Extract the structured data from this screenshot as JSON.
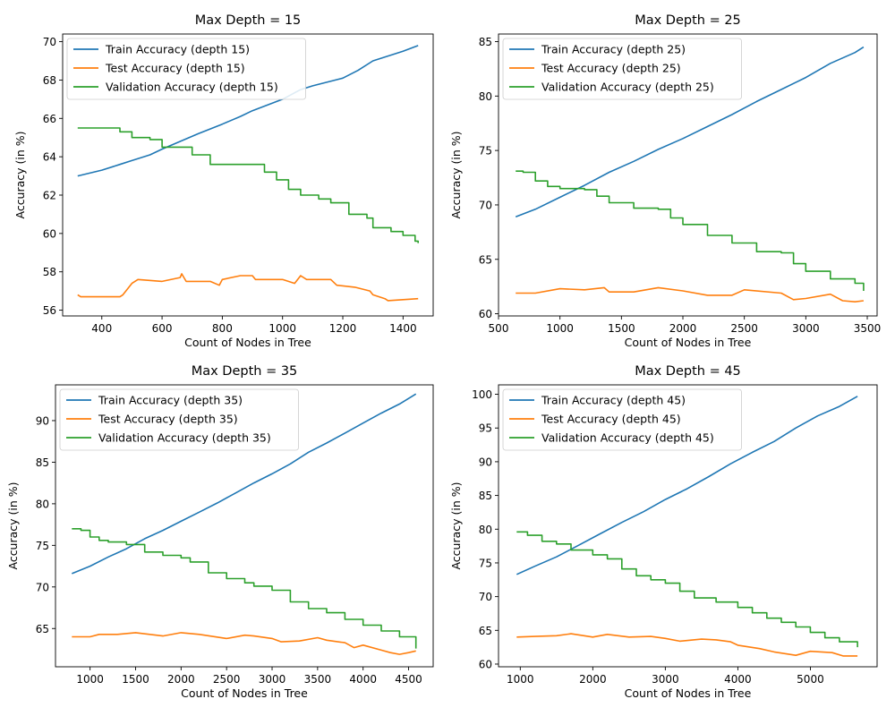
{
  "colors": {
    "train": "#1f77b4",
    "test": "#ff7f0e",
    "validation": "#2ca02c"
  },
  "chart_data": [
    {
      "type": "line",
      "title": "Max Depth = 15",
      "xlabel": "Count of Nodes in Tree",
      "ylabel": "Accuracy (in %)",
      "xlim": [
        270,
        1500
      ],
      "ylim": [
        55.7,
        70.4
      ],
      "xticks": [
        400,
        600,
        800,
        1000,
        1200,
        1400
      ],
      "yticks": [
        56,
        58,
        60,
        62,
        64,
        66,
        68,
        70
      ],
      "legend_position": "top-left",
      "grid": false,
      "series": [
        {
          "name": "Train Accuracy (depth 15)",
          "color_key": "train",
          "x": [
            320,
            400,
            460,
            500,
            560,
            600,
            660,
            720,
            800,
            860,
            900,
            1000,
            1060,
            1100,
            1200,
            1250,
            1300,
            1400,
            1450
          ],
          "y": [
            63.0,
            63.3,
            63.6,
            63.8,
            64.1,
            64.4,
            64.8,
            65.2,
            65.7,
            66.1,
            66.4,
            67.0,
            67.5,
            67.7,
            68.1,
            68.5,
            69.0,
            69.5,
            69.8
          ]
        },
        {
          "name": "Test Accuracy (depth 15)",
          "color_key": "test",
          "x": [
            320,
            330,
            460,
            470,
            500,
            520,
            600,
            660,
            665,
            680,
            760,
            790,
            800,
            860,
            900,
            910,
            1000,
            1040,
            1060,
            1080,
            1160,
            1180,
            1240,
            1290,
            1300,
            1340,
            1350,
            1450
          ],
          "y": [
            56.8,
            56.7,
            56.7,
            56.8,
            57.4,
            57.6,
            57.5,
            57.7,
            57.9,
            57.5,
            57.5,
            57.3,
            57.6,
            57.8,
            57.8,
            57.6,
            57.6,
            57.4,
            57.8,
            57.6,
            57.6,
            57.3,
            57.2,
            57.0,
            56.8,
            56.6,
            56.5,
            56.6
          ]
        },
        {
          "name": "Validation Accuracy (depth 15)",
          "color_key": "validation",
          "x": [
            320,
            400,
            460,
            500,
            560,
            600,
            640,
            700,
            760,
            900,
            940,
            980,
            1020,
            1060,
            1120,
            1160,
            1220,
            1280,
            1300,
            1360,
            1400,
            1440,
            1450
          ],
          "y": [
            65.5,
            65.5,
            65.3,
            65.0,
            64.9,
            64.5,
            64.5,
            64.1,
            63.6,
            63.6,
            63.2,
            62.8,
            62.3,
            62.0,
            61.8,
            61.6,
            61.0,
            60.8,
            60.3,
            60.1,
            59.9,
            59.6,
            59.5
          ]
        }
      ]
    },
    {
      "type": "line",
      "title": "Max Depth = 25",
      "xlabel": "Count of Nodes in Tree",
      "ylabel": "Accuracy (in %)",
      "xlim": [
        500,
        3580
      ],
      "ylim": [
        59.8,
        85.7
      ],
      "xticks": [
        500,
        1000,
        1500,
        2000,
        2500,
        3000,
        3500
      ],
      "yticks": [
        60,
        65,
        70,
        75,
        80,
        85
      ],
      "legend_position": "top-left",
      "grid": false,
      "series": [
        {
          "name": "Train Accuracy (depth 25)",
          "color_key": "train",
          "x": [
            640,
            800,
            1000,
            1200,
            1400,
            1600,
            1800,
            2000,
            2200,
            2400,
            2600,
            2800,
            3000,
            3200,
            3400,
            3470
          ],
          "y": [
            68.9,
            69.6,
            70.7,
            71.8,
            73.0,
            74.0,
            75.1,
            76.1,
            77.2,
            78.3,
            79.5,
            80.6,
            81.7,
            83.0,
            84.0,
            84.5
          ]
        },
        {
          "name": "Test Accuracy (depth 25)",
          "color_key": "test",
          "x": [
            640,
            800,
            1000,
            1200,
            1360,
            1400,
            1600,
            1800,
            2000,
            2200,
            2400,
            2500,
            2800,
            2900,
            3000,
            3200,
            3300,
            3400,
            3470
          ],
          "y": [
            61.9,
            61.9,
            62.3,
            62.2,
            62.4,
            62.0,
            62.0,
            62.4,
            62.1,
            61.7,
            61.7,
            62.2,
            61.9,
            61.3,
            61.4,
            61.8,
            61.2,
            61.1,
            61.2
          ]
        },
        {
          "name": "Validation Accuracy (depth 25)",
          "color_key": "validation",
          "x": [
            640,
            700,
            800,
            900,
            1000,
            1200,
            1300,
            1400,
            1600,
            1800,
            1900,
            2000,
            2200,
            2400,
            2600,
            2800,
            2900,
            3000,
            3200,
            3400,
            3470
          ],
          "y": [
            73.1,
            73.0,
            72.2,
            71.7,
            71.5,
            71.4,
            70.8,
            70.2,
            69.7,
            69.6,
            68.8,
            68.2,
            67.2,
            66.5,
            65.7,
            65.6,
            64.6,
            63.9,
            63.2,
            62.8,
            62.1
          ]
        }
      ]
    },
    {
      "type": "line",
      "title": "Max Depth = 35",
      "xlabel": "Count of Nodes in Tree",
      "ylabel": "Accuracy (in %)",
      "xlim": [
        620,
        4770
      ],
      "ylim": [
        60.4,
        94.3
      ],
      "xticks": [
        1000,
        1500,
        2000,
        2500,
        3000,
        3500,
        4000,
        4500
      ],
      "yticks": [
        65,
        70,
        75,
        80,
        85,
        90
      ],
      "legend_position": "top-left",
      "grid": false,
      "series": [
        {
          "name": "Train Accuracy (depth 35)",
          "color_key": "train",
          "x": [
            800,
            1000,
            1200,
            1400,
            1600,
            1800,
            2000,
            2200,
            2400,
            2600,
            2800,
            3000,
            3200,
            3400,
            3600,
            3800,
            4000,
            4200,
            4400,
            4580
          ],
          "y": [
            71.6,
            72.5,
            73.6,
            74.6,
            75.8,
            76.8,
            77.9,
            79.0,
            80.1,
            81.3,
            82.5,
            83.6,
            84.8,
            86.2,
            87.3,
            88.5,
            89.7,
            90.9,
            92.0,
            93.2
          ]
        },
        {
          "name": "Test Accuracy (depth 35)",
          "color_key": "test",
          "x": [
            800,
            1000,
            1100,
            1300,
            1500,
            1800,
            2000,
            2200,
            2500,
            2700,
            2800,
            3000,
            3100,
            3300,
            3500,
            3600,
            3800,
            3900,
            4000,
            4200,
            4300,
            4400,
            4500,
            4580
          ],
          "y": [
            64.0,
            64.0,
            64.3,
            64.3,
            64.5,
            64.1,
            64.5,
            64.3,
            63.8,
            64.2,
            64.1,
            63.8,
            63.4,
            63.5,
            63.9,
            63.6,
            63.3,
            62.7,
            63.0,
            62.4,
            62.1,
            61.9,
            62.1,
            62.3
          ]
        },
        {
          "name": "Validation Accuracy (depth 35)",
          "color_key": "validation",
          "x": [
            800,
            900,
            1000,
            1100,
            1200,
            1400,
            1600,
            1800,
            2000,
            2100,
            2300,
            2500,
            2700,
            2800,
            3000,
            3200,
            3400,
            3600,
            3800,
            4000,
            4200,
            4400,
            4580
          ],
          "y": [
            77.0,
            76.8,
            76.0,
            75.6,
            75.4,
            75.1,
            74.2,
            73.8,
            73.5,
            73.0,
            71.7,
            71.0,
            70.5,
            70.1,
            69.6,
            68.2,
            67.4,
            66.9,
            66.1,
            65.4,
            64.7,
            64.0,
            62.6
          ]
        }
      ]
    },
    {
      "type": "line",
      "title": "Max Depth = 45",
      "xlabel": "Count of Nodes in Tree",
      "ylabel": "Accuracy (in %)",
      "xlim": [
        700,
        5920
      ],
      "ylim": [
        59.6,
        101.4
      ],
      "xticks": [
        1000,
        2000,
        3000,
        4000,
        5000
      ],
      "yticks": [
        60,
        65,
        70,
        75,
        80,
        85,
        90,
        95,
        100
      ],
      "legend_position": "top-left",
      "grid": false,
      "series": [
        {
          "name": "Train Accuracy (depth 45)",
          "color_key": "train",
          "x": [
            950,
            1200,
            1500,
            1800,
            2100,
            2400,
            2700,
            3000,
            3300,
            3600,
            3900,
            4200,
            4500,
            4800,
            5100,
            5400,
            5650
          ],
          "y": [
            73.3,
            74.5,
            75.9,
            77.6,
            79.3,
            81.0,
            82.6,
            84.4,
            86.0,
            87.8,
            89.7,
            91.4,
            93.0,
            95.0,
            96.8,
            98.2,
            99.7
          ]
        },
        {
          "name": "Test Accuracy (depth 45)",
          "color_key": "test",
          "x": [
            950,
            1200,
            1500,
            1700,
            2000,
            2200,
            2500,
            2800,
            3000,
            3200,
            3500,
            3700,
            3900,
            4000,
            4300,
            4500,
            4800,
            5000,
            5300,
            5450,
            5650
          ],
          "y": [
            64.0,
            64.1,
            64.2,
            64.5,
            64.0,
            64.4,
            64.0,
            64.1,
            63.8,
            63.4,
            63.7,
            63.6,
            63.3,
            62.8,
            62.3,
            61.8,
            61.3,
            61.9,
            61.7,
            61.2,
            61.2
          ]
        },
        {
          "name": "Validation Accuracy (depth 45)",
          "color_key": "validation",
          "x": [
            950,
            1100,
            1300,
            1500,
            1700,
            2000,
            2200,
            2400,
            2600,
            2800,
            3000,
            3200,
            3400,
            3700,
            4000,
            4200,
            4400,
            4600,
            4800,
            5000,
            5200,
            5400,
            5650
          ],
          "y": [
            79.6,
            79.1,
            78.2,
            77.8,
            76.9,
            76.2,
            75.6,
            74.1,
            73.1,
            72.5,
            72.0,
            70.8,
            69.8,
            69.2,
            68.4,
            67.6,
            66.8,
            66.2,
            65.5,
            64.7,
            63.9,
            63.3,
            62.5
          ]
        }
      ]
    }
  ]
}
